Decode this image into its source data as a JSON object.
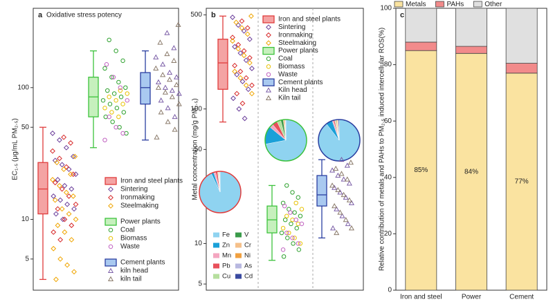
{
  "chart_data": [
    {
      "type": "box_scatter",
      "panel": "a",
      "title": "Oxidative stress potency",
      "y_label": "EC₁.₅ (μg/mL PM₂.₅)",
      "log_y": true,
      "ylim": [
        2.9,
        400
      ],
      "yticks": [
        5,
        10,
        50,
        100
      ],
      "groups": [
        {
          "name": "Iron and steel plants",
          "color": "#e03c3c",
          "fill": "#f4a3a3",
          "box": {
            "whisker_low": 3.5,
            "q1": 11,
            "median": 17,
            "q3": 27,
            "whisker_high": 50
          },
          "subgroups": [
            {
              "name": "Sintering",
              "marker": "diamond",
              "color": "#6a3d9a",
              "values": [
                45,
                40,
                35,
                30,
                28,
                26,
                24,
                22,
                20,
                18,
                17,
                15,
                14,
                13,
                12,
                11,
                10
              ]
            },
            {
              "name": "Ironmaking",
              "marker": "diamond",
              "color": "#d62728",
              "values": [
                42,
                38,
                33,
                29,
                25,
                22,
                19,
                17,
                15,
                13,
                12,
                10,
                9,
                8,
                7
              ]
            },
            {
              "name": "Steelmaking",
              "marker": "diamond",
              "color": "#f0a500",
              "values": [
                30,
                27,
                24,
                22,
                20,
                18,
                16,
                15,
                14,
                12,
                11,
                10,
                9,
                8,
                7,
                6,
                5,
                4.5,
                4,
                3.5
              ]
            }
          ]
        },
        {
          "name": "Power plants",
          "color": "#3cc23c",
          "fill": "#c6f0bd",
          "box": {
            "whisker_low": 35,
            "q1": 60,
            "median": 85,
            "q3": 120,
            "whisker_high": 190
          },
          "subgroups": [
            {
              "name": "Coal",
              "marker": "circle",
              "color": "#2ca02c",
              "values": [
                230,
                190,
                160,
                140,
                120,
                110,
                100,
                95,
                90,
                85,
                80,
                75,
                70,
                65,
                60,
                55,
                50,
                45
              ]
            },
            {
              "name": "Biomass",
              "marker": "circle",
              "color": "#e8c100",
              "values": [
                95,
                90,
                85,
                80,
                75,
                70,
                65,
                60
              ]
            },
            {
              "name": "Waste",
              "marker": "circle",
              "color": "#c060c0",
              "values": [
                150,
                120,
                100,
                80,
                60,
                50,
                45,
                40
              ]
            }
          ]
        },
        {
          "name": "Cement plants",
          "color": "#2a3ea0",
          "fill": "#a9c9f0",
          "box": {
            "whisker_low": 40,
            "q1": 75,
            "median": 100,
            "q3": 130,
            "whisker_high": 190
          },
          "subgroups": [
            {
              "name": "kiln head",
              "marker": "triangle",
              "color": "#7b5ea7",
              "values": [
                260,
                200,
                170,
                150,
                130,
                120,
                110,
                100,
                95,
                90,
                80,
                70,
                60
              ]
            },
            {
              "name": "kiln tail",
              "marker": "triangle",
              "color": "#8a7a6a",
              "values": [
                300,
                220,
                180,
                160,
                140,
                125,
                115,
                105,
                100,
                92,
                85,
                75,
                65,
                55,
                48,
                42
              ]
            }
          ]
        }
      ]
    },
    {
      "type": "box_scatter",
      "panel": "b",
      "y_label": "Metal concentration (mg/g PM₂.₅)",
      "log_y": true,
      "ylim": [
        4.5,
        560
      ],
      "yticks": [
        5,
        10,
        50,
        100,
        500
      ],
      "pie_components": [
        {
          "name": "Fe",
          "color": "#8fd3f0"
        },
        {
          "name": "Zn",
          "color": "#1aa0d8"
        },
        {
          "name": "Mn",
          "color": "#f4a6c0"
        },
        {
          "name": "Pb",
          "color": "#e8505b"
        },
        {
          "name": "Cu",
          "color": "#b6df9e"
        },
        {
          "name": "V",
          "color": "#3a9a4a"
        },
        {
          "name": "Cr",
          "color": "#f5c08a"
        },
        {
          "name": "Ni",
          "color": "#f0a040"
        },
        {
          "name": "As",
          "color": "#b8b8e0"
        },
        {
          "name": "Cd",
          "color": "#3a4aa0"
        }
      ],
      "groups": [
        {
          "name": "Iron and steel plants",
          "color": "#e03c3c",
          "fill": "#f4a3a3",
          "box": {
            "whisker_low": 80,
            "q1": 140,
            "median": 220,
            "q3": 330,
            "whisker_high": 490
          },
          "pie": [
            93,
            2,
            1.5,
            1.5,
            0.5,
            0.3,
            0.5,
            0.2,
            0.3,
            0.2
          ],
          "subgroups": [
            {
              "name": "Sintering",
              "marker": "diamond",
              "color": "#6a3d9a",
              "values": [
                480,
                420,
                380,
                330,
                290,
                260,
                230,
                200,
                180,
                160,
                140,
                120,
                100,
                85
              ]
            },
            {
              "name": "Ironmaking",
              "marker": "diamond",
              "color": "#d62728",
              "values": [
                450,
                400,
                340,
                300,
                270,
                240,
                210,
                190,
                170,
                150,
                130,
                110
              ]
            },
            {
              "name": "Steelmaking",
              "marker": "diamond",
              "color": "#f0a500",
              "values": [
                490,
                440,
                400,
                360,
                320,
                280,
                250,
                220,
                190,
                170,
                150,
                130
              ]
            }
          ]
        },
        {
          "name": "Power plants",
          "color": "#3cc23c",
          "fill": "#c6f0bd",
          "box": {
            "whisker_low": 7.5,
            "q1": 12,
            "median": 15,
            "q3": 19,
            "whisker_high": 27
          },
          "pie": [
            72,
            14,
            3,
            4,
            3,
            2,
            1,
            0.5,
            0.3,
            0.2
          ],
          "subgroups": [
            {
              "name": "Coal",
              "marker": "circle",
              "color": "#2ca02c",
              "values": [
                27,
                24,
                22,
                20,
                18,
                17,
                16,
                15,
                14,
                13,
                12,
                11,
                10,
                9,
                8
              ]
            },
            {
              "name": "Biomass",
              "marker": "circle",
              "color": "#e8c100",
              "values": [
                20,
                18,
                16,
                15,
                14,
                13,
                12,
                11,
                10
              ]
            },
            {
              "name": "Waste",
              "marker": "circle",
              "color": "#c060c0",
              "values": [
                19,
                17,
                15,
                14,
                12,
                11,
                10,
                9
              ]
            }
          ]
        },
        {
          "name": "Cement plants",
          "color": "#2a3ea0",
          "fill": "#a9c9f0",
          "box": {
            "whisker_low": 11,
            "q1": 19,
            "median": 23,
            "q3": 32,
            "whisker_high": 42
          },
          "pie": [
            90,
            5,
            1,
            1,
            0.5,
            0.5,
            1,
            0.5,
            0.3,
            0.7
          ],
          "subgroups": [
            {
              "name": "Kiln head",
              "marker": "triangle",
              "color": "#7b5ea7",
              "values": [
                42,
                38,
                35,
                32,
                30,
                28,
                26,
                24,
                22,
                20,
                18,
                16,
                14,
                13
              ]
            },
            {
              "name": "Kiln tail",
              "marker": "triangle",
              "color": "#8a7a6a",
              "values": [
                40,
                36,
                33,
                30,
                27,
                25,
                23,
                21,
                19,
                17,
                15,
                13,
                12
              ]
            }
          ]
        }
      ]
    },
    {
      "type": "stacked_bar",
      "panel": "c",
      "y_label": "Relative contribution of metals and PAHs to PM₂.₅ induced intercellular ROS(%)",
      "categories": [
        "Iron and steel",
        "Power",
        "Cement"
      ],
      "ylim": [
        0,
        100
      ],
      "yticks": [
        0,
        20,
        40,
        60,
        80,
        100
      ],
      "series": [
        {
          "name": "Metals",
          "color": "#fae3a0",
          "values": [
            85,
            84,
            77
          ],
          "value_labels": [
            "85%",
            "84%",
            "77%"
          ]
        },
        {
          "name": "PAHs",
          "color": "#f28b8b",
          "values": [
            3,
            2.5,
            3.5
          ]
        },
        {
          "name": "Other",
          "color": "#e0e0e0",
          "values": [
            12,
            13.5,
            19.5
          ]
        }
      ]
    }
  ]
}
